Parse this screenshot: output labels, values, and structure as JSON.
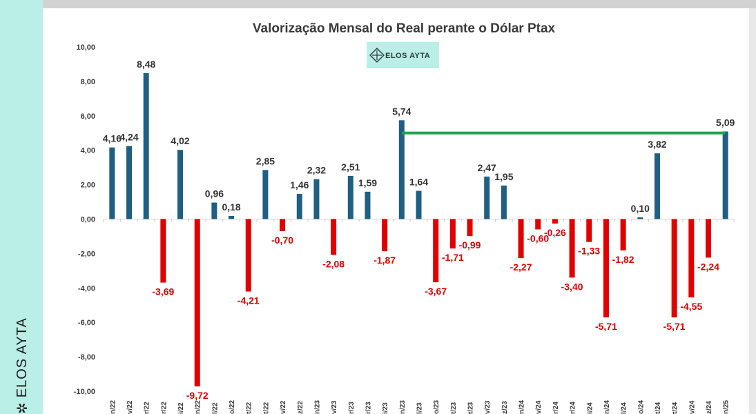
{
  "brand": {
    "name": "ELOS AYTA",
    "badge_label": "ELOS AYTA",
    "icon": "elos-ayta-logo-icon",
    "band_color": "#b9efe6"
  },
  "colors": {
    "positive": "#1f5f82",
    "negative": "#e00000",
    "trend_line": "#1fa34a",
    "badge_bg": "#b9efe6"
  },
  "chart_data": {
    "type": "bar",
    "title": "Valorização Mensal do Real perante o Dólar Ptax",
    "xlabel": "",
    "ylabel": "",
    "ylim": [
      -10,
      10
    ],
    "yticks": [
      "10,00",
      "8,00",
      "6,00",
      "4,00",
      "2,00",
      "0,00",
      "-2,00",
      "-4,00",
      "-6,00",
      "-8,00",
      "-10,00"
    ],
    "grid": false,
    "categories": [
      "n/22",
      "v/22",
      "r/22",
      "r/22",
      "i/22",
      "n/22",
      "l/22",
      "o/22",
      "t/22",
      "t/22",
      "v/22",
      "z/22",
      "n/23",
      "v/23",
      "r/23",
      "r/23",
      "i/23",
      "n/23",
      "l/23",
      "o/23",
      "t/23",
      "t/23",
      "v/23",
      "z/23",
      "n/24",
      "v/24",
      "r/24",
      "r/24",
      "i/24",
      "n/24",
      "l/24",
      "o/24",
      "t/24",
      "t/24",
      "v/24",
      "z/24",
      "n/25"
    ],
    "values": [
      4.16,
      4.24,
      8.48,
      -3.69,
      4.02,
      -9.72,
      0.96,
      0.18,
      -4.21,
      2.85,
      -0.7,
      1.46,
      2.32,
      -2.08,
      2.51,
      1.59,
      -1.87,
      5.74,
      1.64,
      -3.67,
      -1.71,
      -0.99,
      2.47,
      1.95,
      -2.27,
      -0.6,
      -0.26,
      -3.4,
      -1.33,
      -5.71,
      -1.82,
      0.1,
      3.82,
      -5.71,
      -4.55,
      -2.24,
      5.09
    ],
    "labels": [
      "4,16",
      "4,24",
      "8,48",
      "-3,69",
      "4,02",
      "-9,72",
      "0,96",
      "0,18",
      "-4,21",
      "2,85",
      "-0,70",
      "1,46",
      "2,32",
      "-2,08",
      "2,51",
      "1,59",
      "-1,87",
      "5,74",
      "1,64",
      "-3,67",
      "-1,71",
      "-0,99",
      "2,47",
      "1,95",
      "-2,27",
      "-0,60",
      "-0,26",
      "-3,40",
      "-1,33",
      "-5,71",
      "-1,82",
      "0,10",
      "3,82",
      "-5,71",
      "-4,55",
      "-2,24",
      "5,09"
    ],
    "annotations": [
      {
        "type": "line",
        "from_index": 17,
        "to_index": 36,
        "from_value": 5.0,
        "to_value": 5.0,
        "color": "#1fa34a"
      }
    ]
  }
}
